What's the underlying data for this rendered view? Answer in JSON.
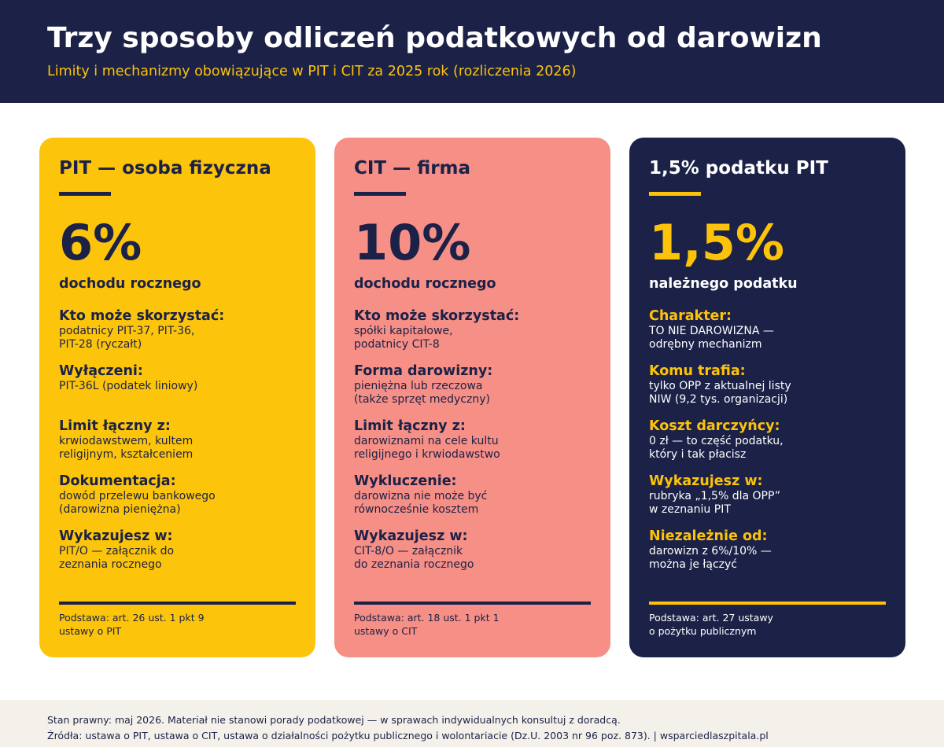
{
  "header": {
    "title": "Trzy sposoby odliczeń podatkowych od darowizn",
    "subtitle": "Limity i mechanizmy obowiązujące w PIT i CIT za 2025 rok (rozliczenia 2026)"
  },
  "colors": {
    "navy": "#1b2147",
    "yellow": "#fcc50b",
    "salmon": "#f68f85",
    "footer_bg": "#f4f1ea"
  },
  "cards": [
    {
      "title": "PIT — osoba fizyczna",
      "big_value": "6%",
      "big_caption": "dochodu rocznego",
      "sections": [
        {
          "label": "Kto może skorzystać:",
          "text": "podatnicy PIT-37, PIT-36,\nPIT-28 (ryczałt)"
        },
        {
          "label": "Wyłączeni:",
          "text": "PIT-36L (podatek liniowy)"
        },
        {
          "label": "Limit łączny z:",
          "text": "krwiodawstwem, kultem\nreligijnym, kształceniem"
        },
        {
          "label": "Dokumentacja:",
          "text": "dowód przelewu bankowego\n(darowizna pieniężna)"
        },
        {
          "label": "Wykazujesz w:",
          "text": "PIT/O — załącznik do\nzeznania rocznego"
        }
      ],
      "footnote": "Podstawa: art. 26 ust. 1 pkt 9\nustawy o PIT"
    },
    {
      "title": "CIT — firma",
      "big_value": "10%",
      "big_caption": "dochodu rocznego",
      "sections": [
        {
          "label": "Kto może skorzystać:",
          "text": "spółki kapitałowe,\npodatnicy CIT-8"
        },
        {
          "label": "Forma darowizny:",
          "text": "pieniężna lub rzeczowa\n(także sprzęt medyczny)"
        },
        {
          "label": "Limit łączny z:",
          "text": "darowiznami na cele kultu\nreligijnego i krwiodawstwo"
        },
        {
          "label": "Wykluczenie:",
          "text": "darowizna nie może być\nrównocześnie kosztem"
        },
        {
          "label": "Wykazujesz w:",
          "text": "CIT-8/O — załącznik\ndo zeznania rocznego"
        }
      ],
      "footnote": "Podstawa: art. 18 ust. 1 pkt 1\nustawy o CIT"
    },
    {
      "title": "1,5% podatku PIT",
      "big_value": "1,5%",
      "big_caption": "należnego podatku",
      "sections": [
        {
          "label": "Charakter:",
          "text": "TO NIE DAROWIZNA —\nodrębny mechanizm"
        },
        {
          "label": "Komu trafia:",
          "text": "tylko OPP z aktualnej listy\nNIW (9,2 tys. organizacji)"
        },
        {
          "label": "Koszt darczyńcy:",
          "text": "0 zł — to część podatku,\nktóry i tak płacisz"
        },
        {
          "label": "Wykazujesz w:",
          "text": "rubryka „1,5% dla OPP”\nw zeznaniu PIT"
        },
        {
          "label": "Niezależnie od:",
          "text": "darowizn z 6%/10% —\nmożna je łączyć"
        }
      ],
      "footnote": "Podstawa: art. 27 ustawy\no pożytku publicznym"
    }
  ],
  "footer": {
    "line1": "Stan prawny: maj 2026. Materiał nie stanowi porady podatkowej — w sprawach indywidualnych konsultuj z doradcą.",
    "line2": "Źródła: ustawa o PIT, ustawa o CIT, ustawa o działalności pożytku publicznego i wolontariacie (Dz.U. 2003 nr 96 poz. 873). | wsparciedlaszpitala.pl"
  }
}
